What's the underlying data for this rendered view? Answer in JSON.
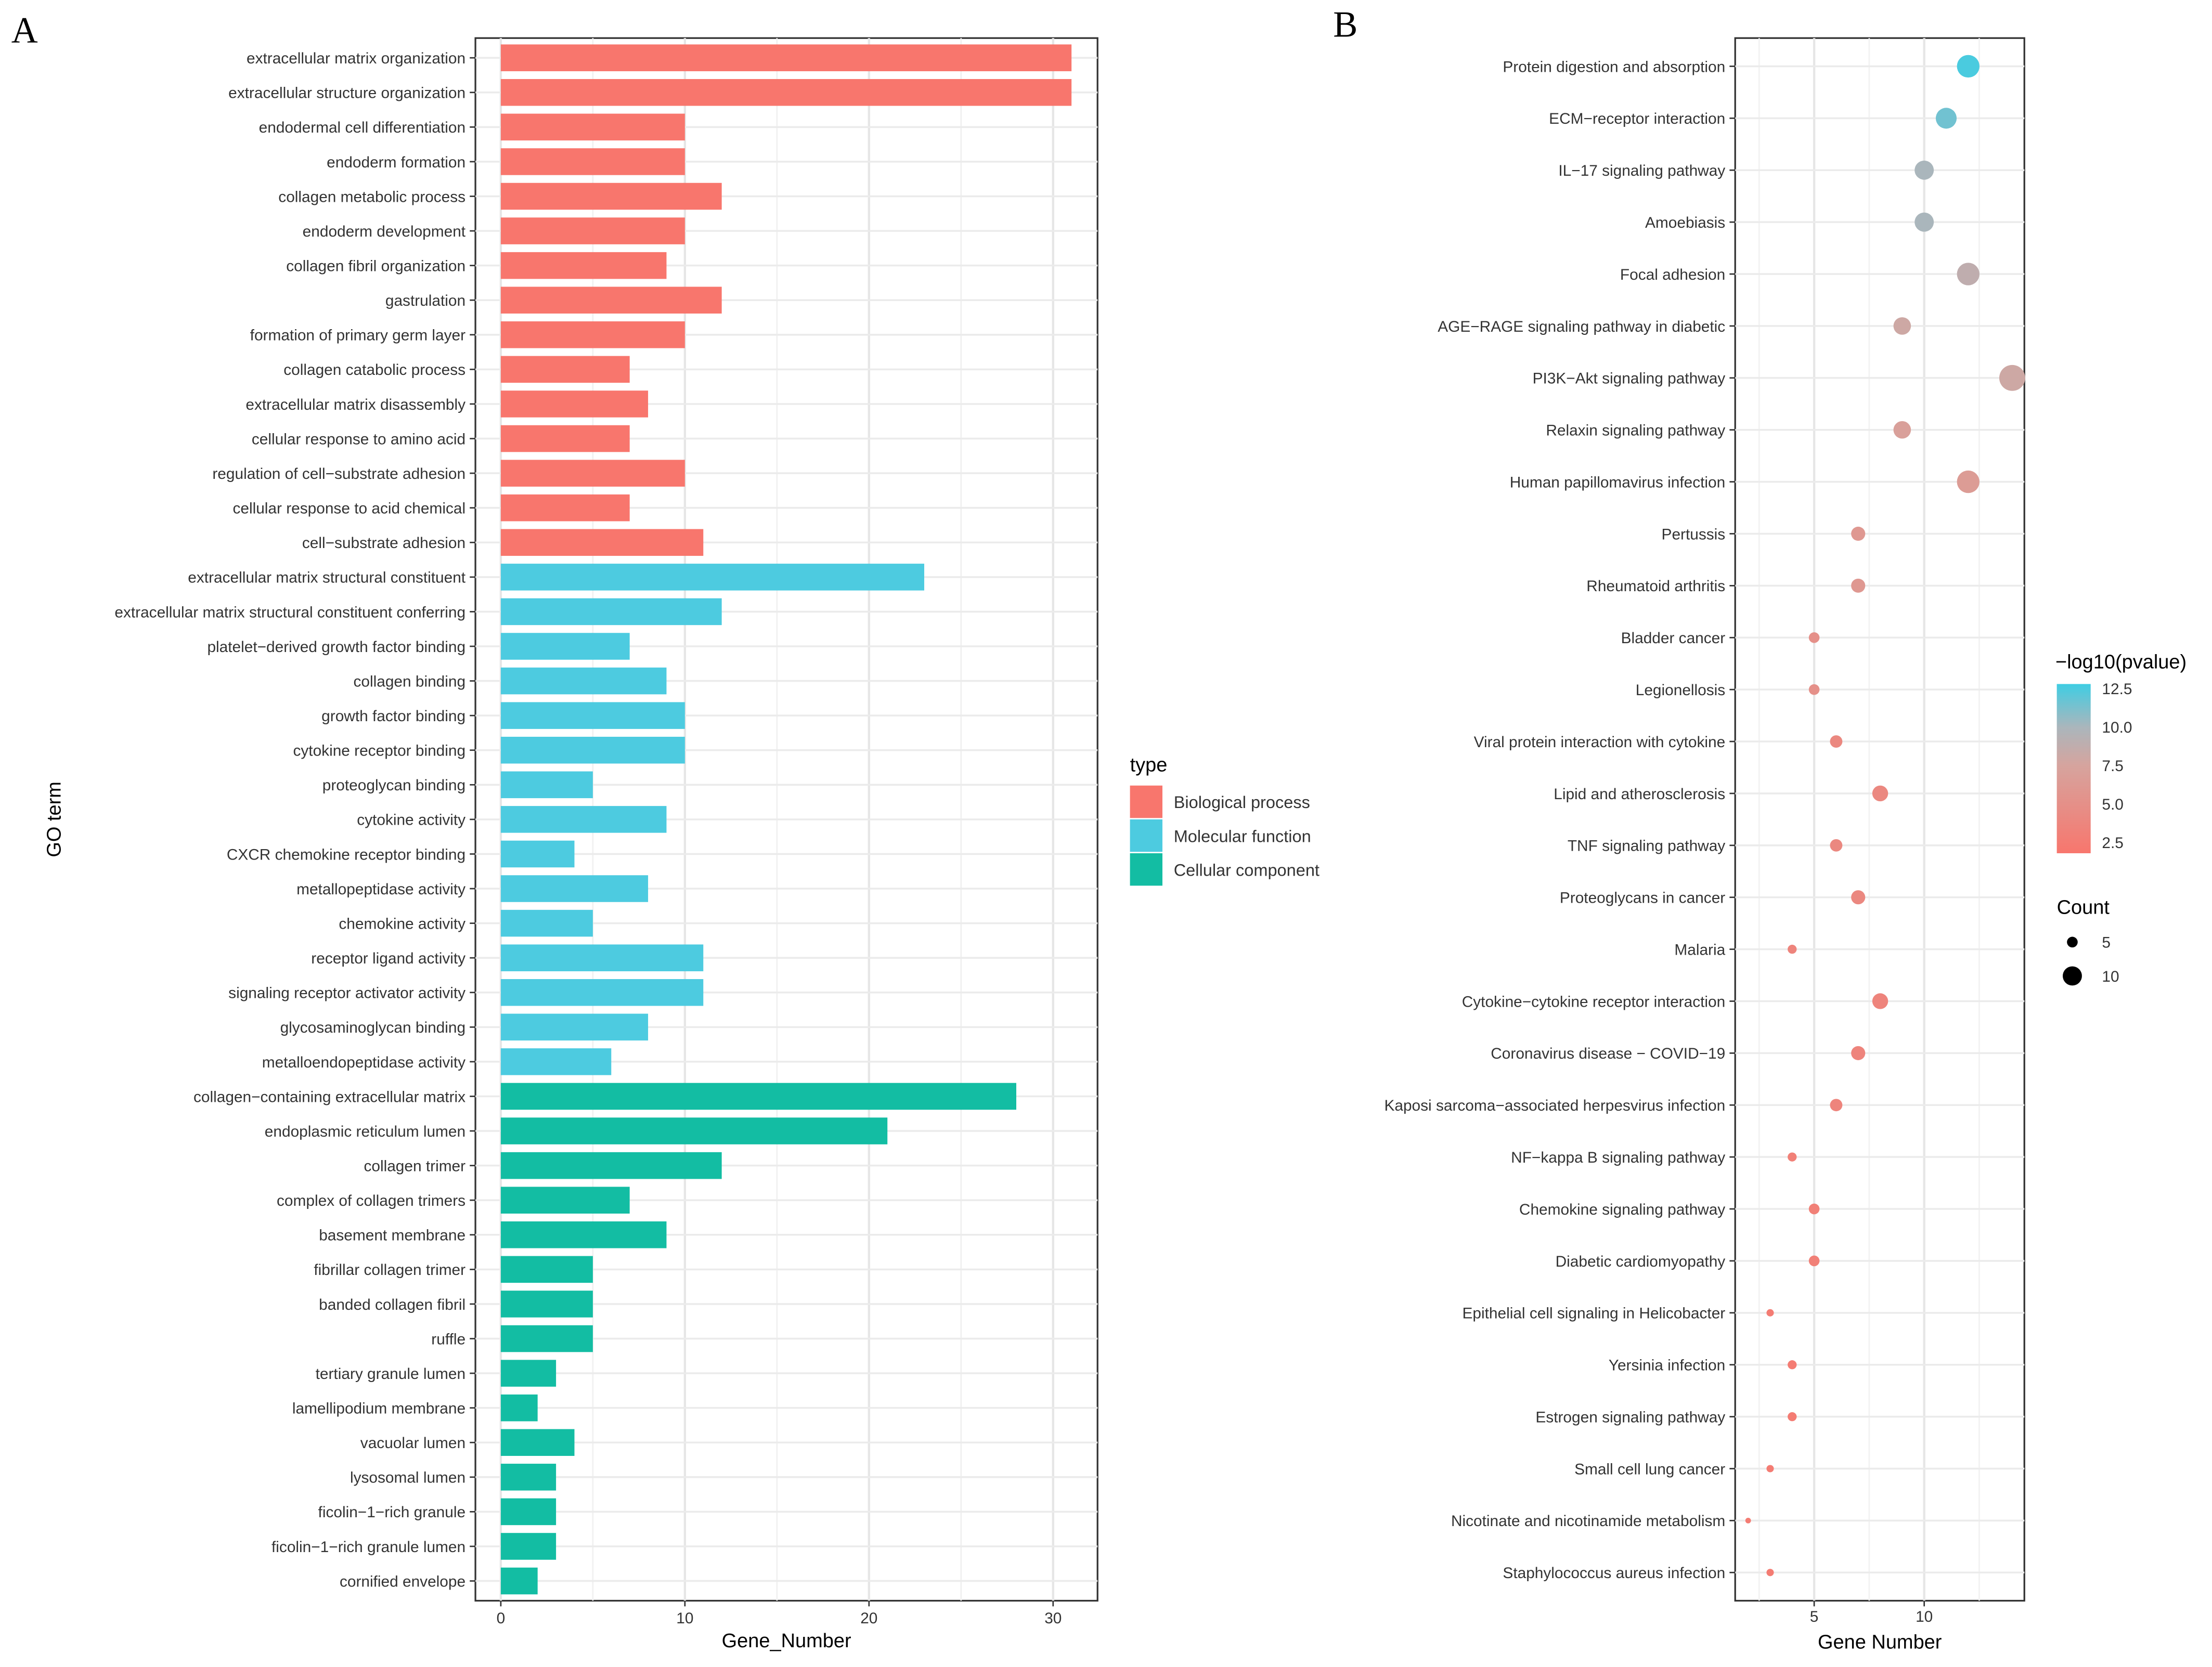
{
  "chart_data": [
    {
      "panel": "A",
      "type": "bar",
      "orientation": "horizontal",
      "xlabel": "Gene_Number",
      "ylabel": "GO term",
      "xlim": [
        0,
        32
      ],
      "xticks": [
        0,
        10,
        20,
        30
      ],
      "grid": true,
      "legend": {
        "title": "type",
        "placement": "right",
        "entries": [
          {
            "name": "Biological process",
            "color": "#F8766D"
          },
          {
            "name": "Molecular function",
            "color": "#4DCBE0"
          },
          {
            "name": "Cellular component",
            "color": "#13BDA3"
          }
        ]
      },
      "categories": [
        {
          "label": "extracellular matrix organization",
          "type": 0,
          "value": 31
        },
        {
          "label": "extracellular structure organization",
          "type": 0,
          "value": 31
        },
        {
          "label": "endodermal cell differentiation",
          "type": 0,
          "value": 10
        },
        {
          "label": "endoderm formation",
          "type": 0,
          "value": 10
        },
        {
          "label": "collagen metabolic process",
          "type": 0,
          "value": 12
        },
        {
          "label": "endoderm development",
          "type": 0,
          "value": 10
        },
        {
          "label": "collagen fibril organization",
          "type": 0,
          "value": 9
        },
        {
          "label": "gastrulation",
          "type": 0,
          "value": 12
        },
        {
          "label": "formation of primary germ layer",
          "type": 0,
          "value": 10
        },
        {
          "label": "collagen catabolic process",
          "type": 0,
          "value": 7
        },
        {
          "label": "extracellular matrix disassembly",
          "type": 0,
          "value": 8
        },
        {
          "label": "cellular response to amino acid",
          "type": 0,
          "value": 7
        },
        {
          "label": "regulation of cell−substrate adhesion",
          "type": 0,
          "value": 10
        },
        {
          "label": "cellular response to acid chemical",
          "type": 0,
          "value": 7
        },
        {
          "label": "cell−substrate adhesion",
          "type": 0,
          "value": 11
        },
        {
          "label": "extracellular matrix structural constituent",
          "type": 1,
          "value": 23
        },
        {
          "label": "extracellular matrix structural constituent conferring",
          "type": 1,
          "value": 12
        },
        {
          "label": "platelet−derived growth factor binding",
          "type": 1,
          "value": 7
        },
        {
          "label": "collagen binding",
          "type": 1,
          "value": 9
        },
        {
          "label": "growth factor binding",
          "type": 1,
          "value": 10
        },
        {
          "label": "cytokine receptor binding",
          "type": 1,
          "value": 10
        },
        {
          "label": "proteoglycan binding",
          "type": 1,
          "value": 5
        },
        {
          "label": "cytokine activity",
          "type": 1,
          "value": 9
        },
        {
          "label": "CXCR chemokine receptor binding",
          "type": 1,
          "value": 4
        },
        {
          "label": "metallopeptidase activity",
          "type": 1,
          "value": 8
        },
        {
          "label": "chemokine activity",
          "type": 1,
          "value": 5
        },
        {
          "label": "receptor ligand activity",
          "type": 1,
          "value": 11
        },
        {
          "label": "signaling receptor activator activity",
          "type": 1,
          "value": 11
        },
        {
          "label": "glycosaminoglycan binding",
          "type": 1,
          "value": 8
        },
        {
          "label": "metalloendopeptidase activity",
          "type": 1,
          "value": 6
        },
        {
          "label": "collagen−containing extracellular matrix",
          "type": 2,
          "value": 28
        },
        {
          "label": "endoplasmic reticulum lumen",
          "type": 2,
          "value": 21
        },
        {
          "label": "collagen trimer",
          "type": 2,
          "value": 12
        },
        {
          "label": "complex of collagen trimers",
          "type": 2,
          "value": 7
        },
        {
          "label": "basement membrane",
          "type": 2,
          "value": 9
        },
        {
          "label": "fibrillar collagen trimer",
          "type": 2,
          "value": 5
        },
        {
          "label": "banded collagen fibril",
          "type": 2,
          "value": 5
        },
        {
          "label": "ruffle",
          "type": 2,
          "value": 5
        },
        {
          "label": "tertiary granule lumen",
          "type": 2,
          "value": 3
        },
        {
          "label": "lamellipodium membrane",
          "type": 2,
          "value": 2
        },
        {
          "label": "vacuolar lumen",
          "type": 2,
          "value": 4
        },
        {
          "label": "lysosomal lumen",
          "type": 2,
          "value": 3
        },
        {
          "label": "ficolin−1−rich granule",
          "type": 2,
          "value": 3
        },
        {
          "label": "ficolin−1−rich granule lumen",
          "type": 2,
          "value": 3
        },
        {
          "label": "cornified envelope",
          "type": 2,
          "value": 2
        }
      ]
    },
    {
      "panel": "B",
      "type": "scatter",
      "xlabel": "Gene Number",
      "xlim": [
        1.6,
        14.6
      ],
      "xticks": [
        5,
        10
      ],
      "grid": true,
      "color_legend": {
        "title": "−log10(pvalue)",
        "ticks": [
          "12.5",
          "10.0",
          "7.5",
          "5.0",
          "2.5"
        ],
        "range": [
          1.8,
          12.8
        ],
        "low": "#F8766D",
        "high": "#3FCDE3"
      },
      "size_legend": {
        "title": "Count",
        "entries": [
          "5",
          "10"
        ]
      },
      "points": [
        {
          "label": "Protein digestion and absorption",
          "x": 12,
          "p": 12.5
        },
        {
          "label": "ECM−receptor interaction",
          "x": 11,
          "p": 11.5
        },
        {
          "label": "IL−17 signaling pathway",
          "x": 10,
          "p": 10
        },
        {
          "label": "Amoebiasis",
          "x": 10,
          "p": 10
        },
        {
          "label": "Focal adhesion",
          "x": 12,
          "p": 8.8
        },
        {
          "label": "AGE−RAGE signaling pathway in diabetic",
          "x": 9,
          "p": 8
        },
        {
          "label": "PI3K−Akt signaling pathway",
          "x": 14,
          "p": 8
        },
        {
          "label": "Relaxin signaling pathway",
          "x": 9,
          "p": 7
        },
        {
          "label": "Human papillomavirus infection",
          "x": 12,
          "p": 6.5
        },
        {
          "label": "Pertussis",
          "x": 7,
          "p": 6
        },
        {
          "label": "Rheumatoid arthritis",
          "x": 7,
          "p": 6
        },
        {
          "label": "Bladder cancer",
          "x": 5,
          "p": 5
        },
        {
          "label": "Legionellosis",
          "x": 5,
          "p": 5
        },
        {
          "label": "Viral protein interaction with cytokine",
          "x": 6,
          "p": 4
        },
        {
          "label": "Lipid and atherosclerosis",
          "x": 8,
          "p": 4
        },
        {
          "label": "TNF signaling pathway",
          "x": 6,
          "p": 4
        },
        {
          "label": "Proteoglycans in cancer",
          "x": 7,
          "p": 4
        },
        {
          "label": "Malaria",
          "x": 4,
          "p": 3.5
        },
        {
          "label": "Cytokine−cytokine receptor interaction",
          "x": 8,
          "p": 3.5
        },
        {
          "label": "Coronavirus disease − COVID−19",
          "x": 7,
          "p": 3.5
        },
        {
          "label": "Kaposi sarcoma−associated herpesvirus infection",
          "x": 6,
          "p": 3.5
        },
        {
          "label": "NF−kappa B signaling pathway",
          "x": 4,
          "p": 3
        },
        {
          "label": "Chemokine signaling pathway",
          "x": 5,
          "p": 3
        },
        {
          "label": "Diabetic cardiomyopathy",
          "x": 5,
          "p": 3
        },
        {
          "label": "Epithelial cell signaling in Helicobacter",
          "x": 3,
          "p": 2.5
        },
        {
          "label": "Yersinia infection",
          "x": 4,
          "p": 2.5
        },
        {
          "label": "Estrogen signaling pathway",
          "x": 4,
          "p": 2.5
        },
        {
          "label": "Small cell lung cancer",
          "x": 3,
          "p": 2.5
        },
        {
          "label": "Nicotinate and nicotinamide metabolism",
          "x": 2,
          "p": 2.5
        },
        {
          "label": "Staphylococcus aureus infection",
          "x": 3,
          "p": 2.5
        }
      ]
    }
  ],
  "panels": {
    "a": "A",
    "b": "B"
  }
}
